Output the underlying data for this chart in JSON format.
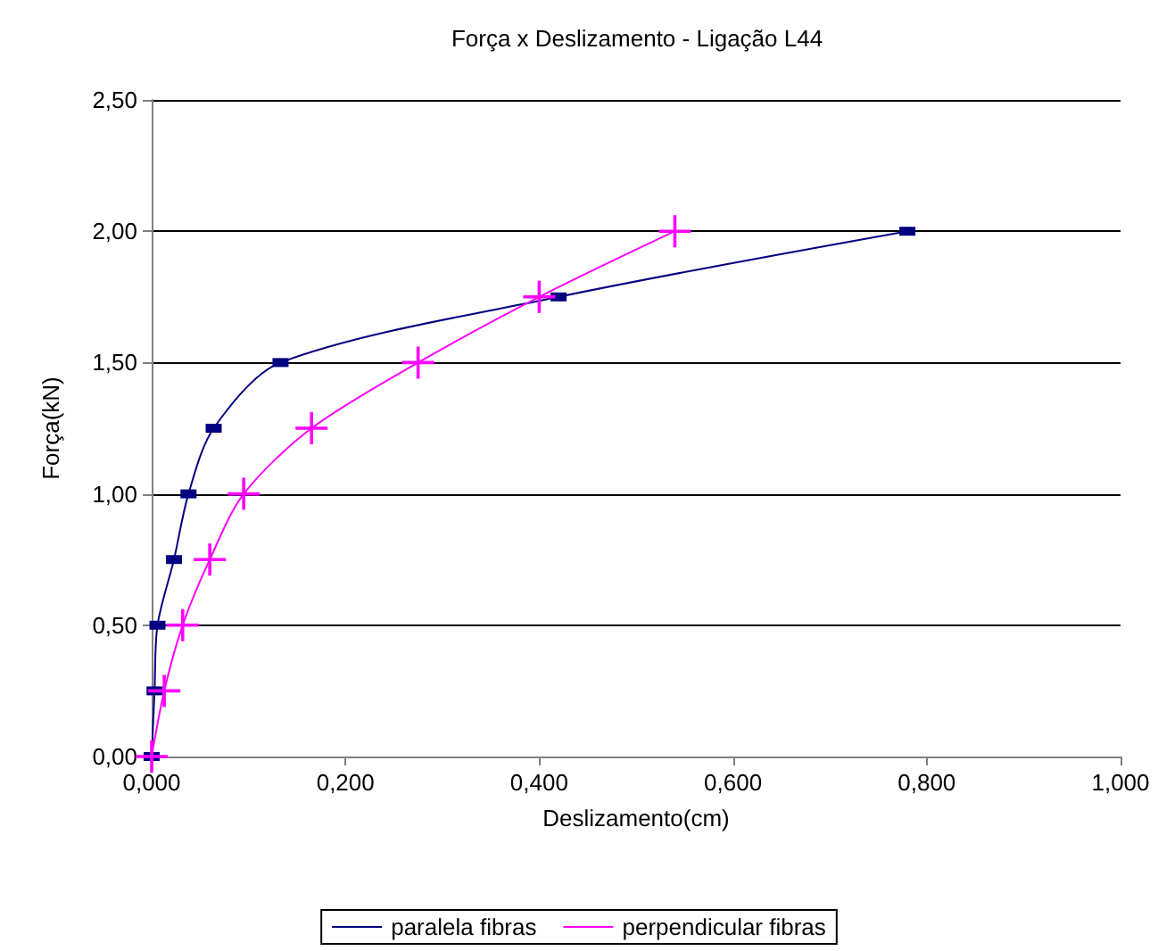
{
  "chart_data": {
    "type": "line",
    "title": "Força x Deslizamento - Ligação L44",
    "xlabel": "Deslizamento(cm)",
    "ylabel": "Força(kN)",
    "xlim": [
      0,
      1
    ],
    "xticks": [
      {
        "value": 0,
        "label": "0,000"
      },
      {
        "value": 0.2,
        "label": "0,200"
      },
      {
        "value": 0.4,
        "label": "0,400"
      },
      {
        "value": 0.6,
        "label": "0,600"
      },
      {
        "value": 0.8,
        "label": "0,800"
      },
      {
        "value": 1,
        "label": "1,000"
      }
    ],
    "ylim": [
      0,
      2.5
    ],
    "yticks": [
      {
        "value": 0,
        "label": "0,00"
      },
      {
        "value": 0.5,
        "label": "0,50"
      },
      {
        "value": 1,
        "label": "1,00"
      },
      {
        "value": 1.5,
        "label": "1,50"
      },
      {
        "value": 2,
        "label": "2,00"
      },
      {
        "value": 2.5,
        "label": "2,50"
      }
    ],
    "grid": "y",
    "legend": "bottom",
    "series": [
      {
        "name": "paralela fibras",
        "color": "#000080",
        "marker": "square",
        "x": [
          0,
          0.003,
          0.006,
          0.023,
          0.038,
          0.064,
          0.133,
          0.42,
          0.78
        ],
        "values": [
          0,
          0.25,
          0.5,
          0.75,
          1,
          1.25,
          1.5,
          1.75,
          2
        ]
      },
      {
        "name": "perpendicular fibras",
        "color": "#ff00ff",
        "marker": "cross",
        "x": [
          0,
          0.013,
          0.032,
          0.06,
          0.095,
          0.165,
          0.275,
          0.4,
          0.54
        ],
        "values": [
          0,
          0.25,
          0.5,
          0.75,
          1,
          1.25,
          1.5,
          1.75,
          2
        ]
      }
    ]
  }
}
